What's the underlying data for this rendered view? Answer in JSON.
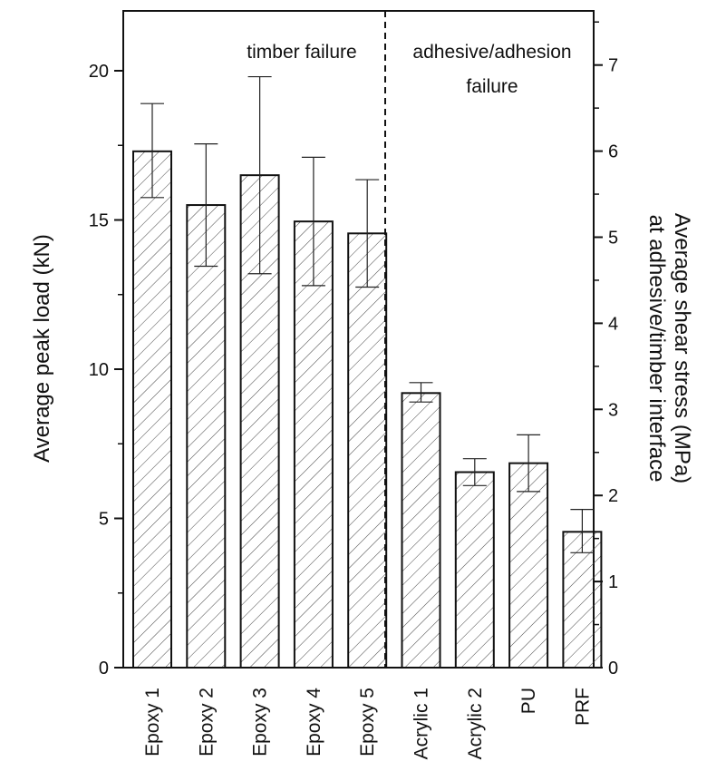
{
  "chart_data": {
    "type": "bar",
    "categories": [
      "Epoxy 1",
      "Epoxy 2",
      "Epoxy 3",
      "Epoxy 4",
      "Epoxy 5",
      "Acrylic 1",
      "Acrylic 2",
      "PU",
      "PRF"
    ],
    "values": [
      17.3,
      15.5,
      16.5,
      14.95,
      14.55,
      9.2,
      6.55,
      6.85,
      4.55
    ],
    "error_upper": [
      18.9,
      17.55,
      19.8,
      17.1,
      16.35,
      9.55,
      7.0,
      7.8,
      5.3
    ],
    "error_lower": [
      15.75,
      13.45,
      13.2,
      12.8,
      12.75,
      8.9,
      6.1,
      5.9,
      3.85
    ],
    "ylabel": "Average peak load  (kN)",
    "ylim": [
      0,
      22
    ],
    "yticks": [
      "0",
      "5",
      "10",
      "15",
      "20"
    ],
    "y2label_line1": "Average shear stress  (MPa)",
    "y2label_line2": "at adhesive/timber interface",
    "y2lim": [
      0,
      7.6
    ],
    "y2ticks": [
      "0",
      "1",
      "2",
      "3",
      "4",
      "5",
      "6",
      "7"
    ],
    "bar_fill": "diagonal hatch",
    "divider_after_category": "Epoxy 5",
    "annotations": {
      "left_region": "timber failure",
      "right_region_line1": "adhesive/adhesion",
      "right_region_line2": "failure"
    }
  }
}
